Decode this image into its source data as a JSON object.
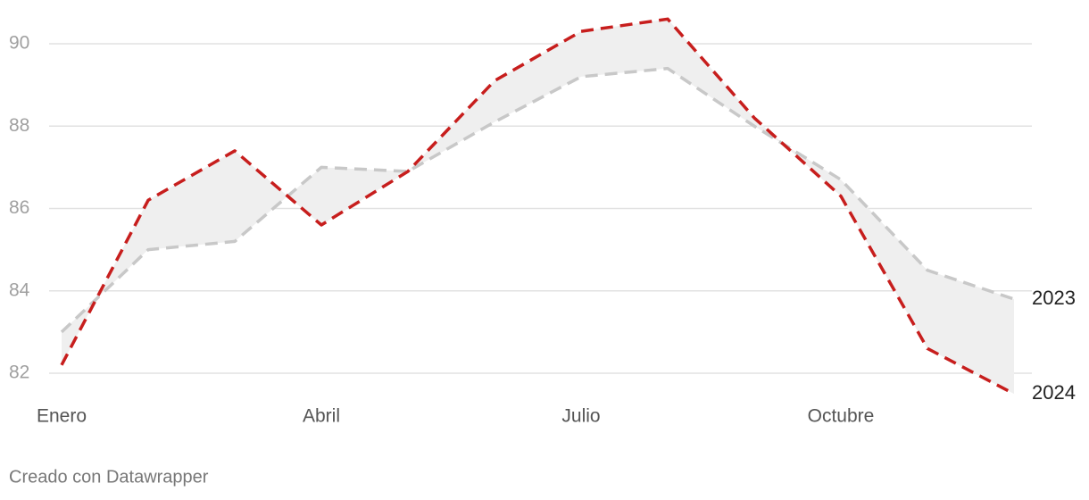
{
  "chart_data": {
    "type": "line",
    "categories": [
      "Enero",
      null,
      null,
      "Abril",
      null,
      null,
      "Julio",
      null,
      null,
      "Octubre",
      null,
      null
    ],
    "series": [
      {
        "name": "2023",
        "color": "#c8c8c8",
        "values": [
          83.0,
          85.0,
          85.2,
          87.0,
          86.9,
          88.1,
          89.2,
          89.4,
          88.0,
          86.7,
          84.5,
          83.8
        ]
      },
      {
        "name": "2024",
        "color": "#c71e1d",
        "values": [
          82.2,
          86.2,
          87.4,
          85.6,
          86.9,
          89.1,
          90.3,
          90.6,
          88.2,
          86.3,
          82.6,
          81.5
        ]
      }
    ],
    "ylim": [
      81.4,
      90.7
    ],
    "yticks": [
      82,
      84,
      86,
      88,
      90
    ],
    "grid": true,
    "dashed": true,
    "band_color": "#efefef",
    "footer": "Creado con Datawrapper"
  }
}
